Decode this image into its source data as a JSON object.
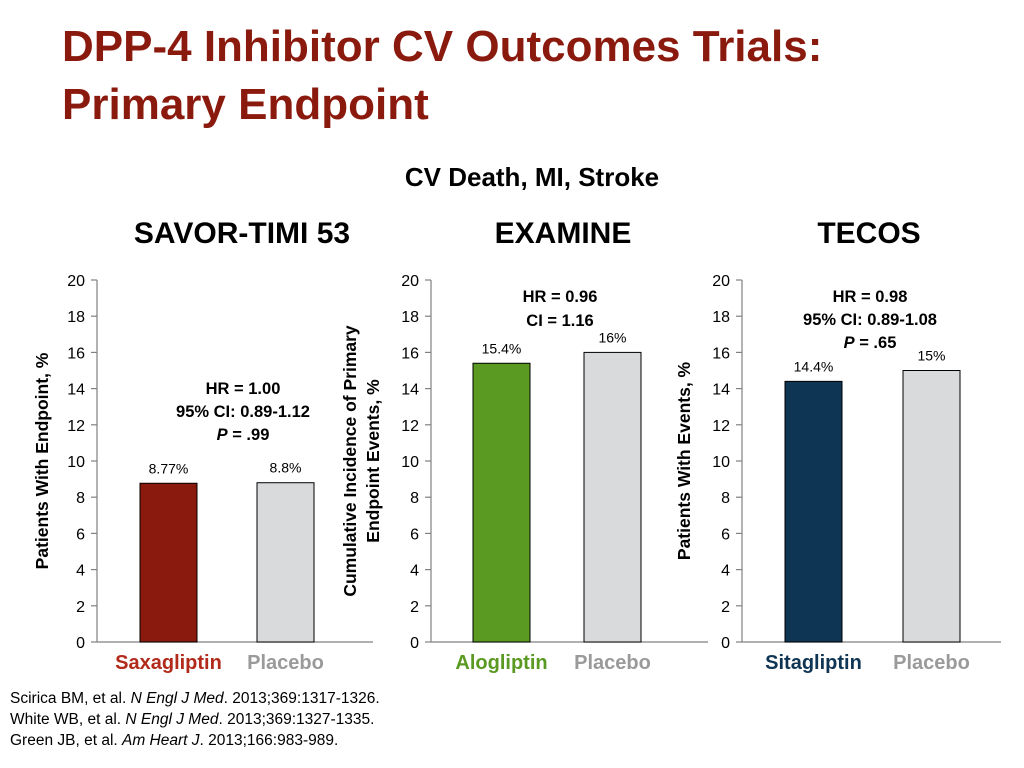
{
  "slide": {
    "title_line1": "DPP-4 Inhibitor CV Outcomes Trials:",
    "title_line2": "Primary Endpoint",
    "subtitle": "CV Death, MI, Stroke",
    "title_color": "#8b1a0e"
  },
  "chart_data": [
    {
      "type": "bar",
      "title": "SAVOR-TIMI 53",
      "ylabel": "Patients With Endpoint, %",
      "ylim": [
        0,
        20
      ],
      "yticks": [
        "0",
        "2",
        "4",
        "6",
        "8",
        "10",
        "12",
        "14",
        "16",
        "18",
        "20"
      ],
      "categories": [
        "Saxagliptin",
        "Placebo"
      ],
      "category_colors": [
        "#b22a1a",
        "#9a9a9a"
      ],
      "bar_colors": [
        "#8b1a0e",
        "#d8dadc"
      ],
      "values": [
        8.77,
        8.8
      ],
      "value_labels": [
        "8.77%",
        "8.8%"
      ],
      "annotation": [
        {
          "text": "HR = 1.00"
        },
        {
          "text": "95% CI: 0.89-1.12"
        },
        {
          "prefix": "P",
          "text": " = .99"
        }
      ]
    },
    {
      "type": "bar",
      "title": "EXAMINE",
      "ylabel": "Cumulative Incidence of Primary Endpoint Events, %",
      "ylabel_lines": [
        "Cumulative Incidence of Primary",
        "Endpoint Events, %"
      ],
      "ylim": [
        0,
        20
      ],
      "yticks": [
        "0",
        "2",
        "4",
        "6",
        "8",
        "10",
        "12",
        "14",
        "16",
        "18",
        "20"
      ],
      "categories": [
        "Alogliptin",
        "Placebo"
      ],
      "category_colors": [
        "#5a9a22",
        "#9a9a9a"
      ],
      "bar_colors": [
        "#5a9a22",
        "#d8dadc"
      ],
      "values": [
        15.4,
        16
      ],
      "value_labels": [
        "15.4%",
        "16%"
      ],
      "annotation": [
        {
          "text": "HR = 0.96"
        },
        {
          "text": "CI = 1.16"
        }
      ]
    },
    {
      "type": "bar",
      "title": "TECOS",
      "ylabel": "Patients With Events, %",
      "ylim": [
        0,
        20
      ],
      "yticks": [
        "0",
        "2",
        "4",
        "6",
        "8",
        "10",
        "12",
        "14",
        "16",
        "18",
        "20"
      ],
      "categories": [
        "Sitagliptin",
        "Placebo"
      ],
      "category_colors": [
        "#0f3554",
        "#9a9a9a"
      ],
      "bar_colors": [
        "#0f3554",
        "#d8dadc"
      ],
      "values": [
        14.4,
        15
      ],
      "value_labels": [
        "14.4%",
        "15%"
      ],
      "annotation": [
        {
          "text": "HR = 0.98"
        },
        {
          "text": "95% CI: 0.89-1.08"
        },
        {
          "prefix": "P",
          "text": " = .65"
        }
      ]
    }
  ],
  "references": [
    {
      "authors": "Scirica BM, et al. ",
      "journal": "N Engl J Med",
      "rest": ". 2013;369:1317-1326."
    },
    {
      "authors": "White WB, et al. ",
      "journal": "N Engl J Med",
      "rest": ". 2013;369:1327-1335."
    },
    {
      "authors": "Green JB, et al. ",
      "journal": "Am Heart J",
      "rest": ". 2013;166:983-989."
    }
  ]
}
